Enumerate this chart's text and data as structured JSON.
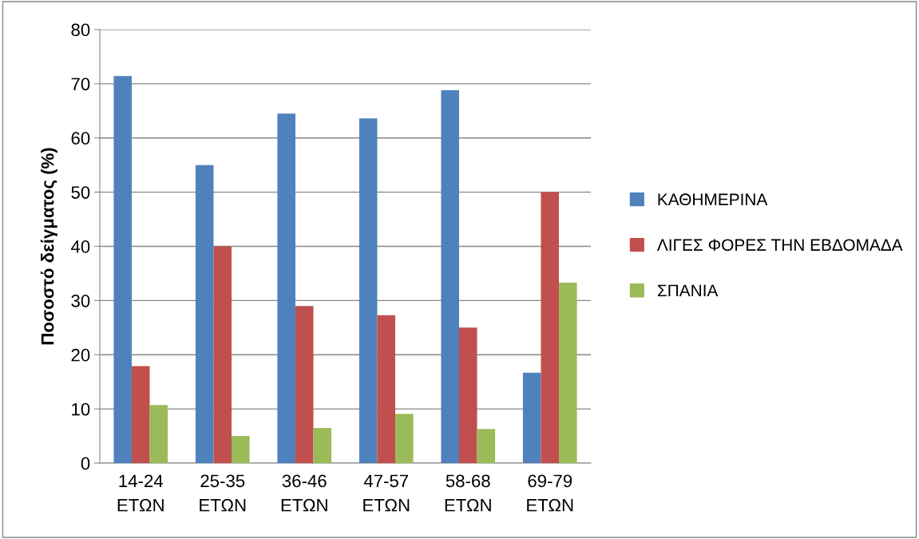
{
  "chart_data": {
    "type": "bar",
    "ylabel": "Ποσοστό δείγματος (%)",
    "categories": [
      "14-24\nΕΤΩΝ",
      "25-35\nΕΤΩΝ",
      "36-46\nΕΤΩΝ",
      "47-57\nΕΤΩΝ",
      "58-68\nΕΤΩΝ",
      "69-79\nΕΤΩΝ"
    ],
    "series": [
      {
        "name": "ΚΑΘΗΜΕΡΙΝΑ",
        "color": "#4f81bd",
        "values": [
          71.4,
          55,
          64.5,
          63.6,
          68.8,
          16.7
        ]
      },
      {
        "name": "ΛΙΓΕΣ ΦΟΡΕΣ ΤΗΝ ΕΒΔΟΜΑΔΑ",
        "color": "#c0504d",
        "values": [
          17.9,
          40,
          29,
          27.3,
          25,
          50
        ]
      },
      {
        "name": "ΣΠΑΝΙΑ",
        "color": "#9bbb59",
        "values": [
          10.7,
          5,
          6.5,
          9.1,
          6.3,
          33.3
        ]
      }
    ],
    "ylim": [
      0,
      80
    ],
    "yticks": [
      0,
      10,
      20,
      30,
      40,
      50,
      60,
      70,
      80
    ],
    "grid": "y",
    "legend": "right"
  }
}
